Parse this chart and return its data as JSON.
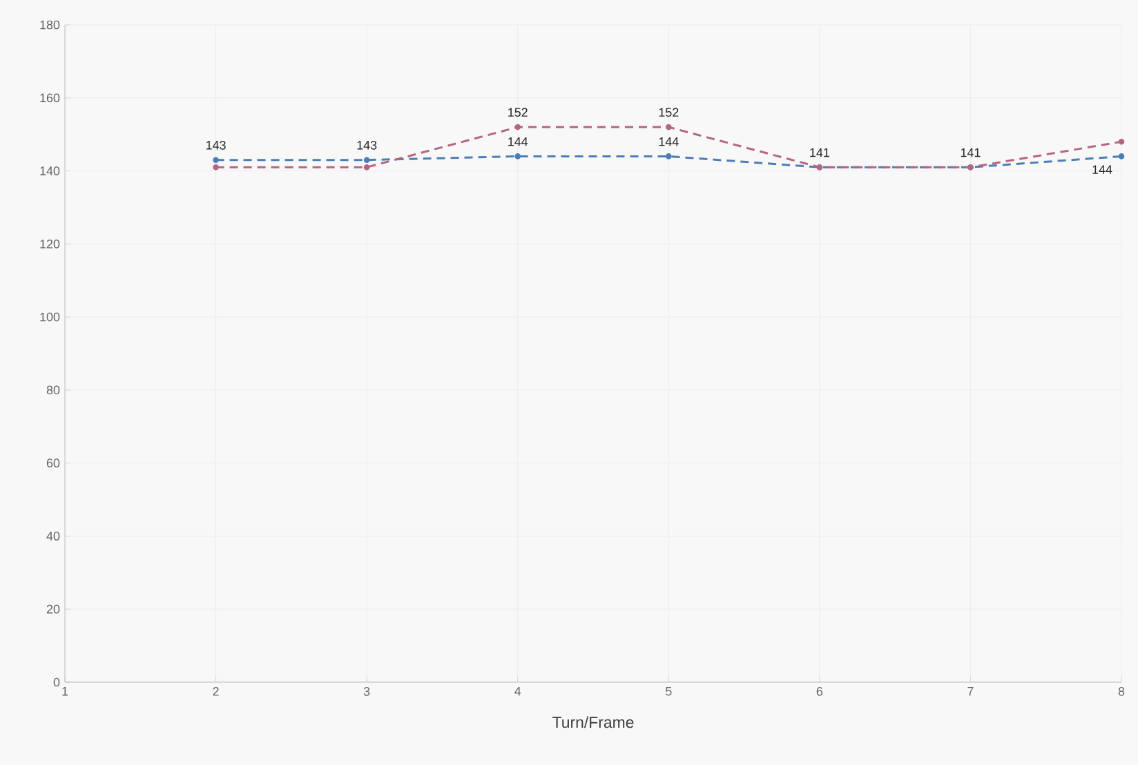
{
  "chart_data": {
    "type": "line",
    "xlabel": "Turn/Frame",
    "x": [
      2,
      3,
      4,
      5,
      6,
      7,
      8
    ],
    "series": [
      {
        "color": "#4a7ebb",
        "values": [
          143,
          143,
          144,
          144,
          141,
          141,
          144
        ],
        "value_labels": [
          "143",
          "143",
          "144",
          "144",
          "141",
          "141",
          "144"
        ]
      },
      {
        "color": "#b5657e",
        "values": [
          141,
          141,
          152,
          152,
          141,
          141,
          148
        ],
        "value_labels": [
          null,
          null,
          "152",
          "152",
          null,
          null,
          null
        ]
      }
    ],
    "xlim": [
      1,
      8
    ],
    "ylim": [
      0,
      180
    ],
    "xticks": [
      1,
      2,
      3,
      4,
      5,
      6,
      7,
      8
    ],
    "yticks": [
      0,
      20,
      40,
      60,
      80,
      100,
      120,
      140,
      160,
      180
    ],
    "grid": true,
    "marker": "circle",
    "line_style": "dashed"
  }
}
